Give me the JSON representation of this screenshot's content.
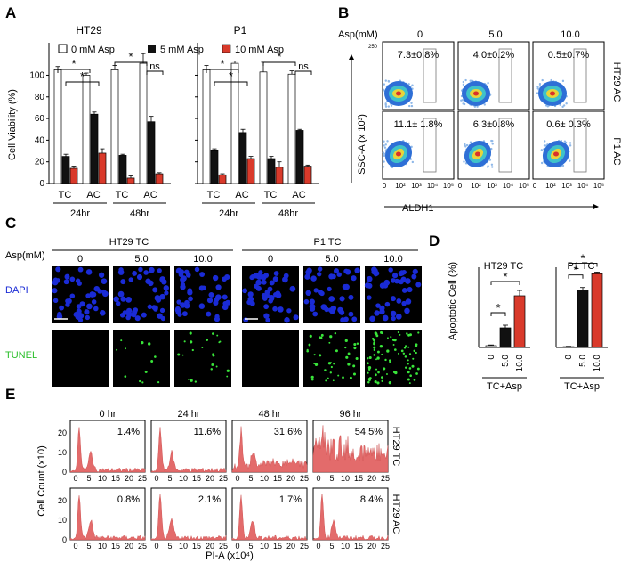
{
  "panels": {
    "A": "A",
    "B": "B",
    "C": "C",
    "D": "D",
    "E": "E"
  },
  "colors": {
    "white_bar": "#ffffff",
    "black_bar": "#111111",
    "red_bar": "#d93a2b",
    "dapi": "#1a2bd6",
    "tunel": "#39e53a",
    "hist": "#e36b6b"
  },
  "panel_a": {
    "ylabel": "Cell Viability (%)",
    "yticks": [
      "0",
      "20",
      "40",
      "60",
      "80",
      "100"
    ],
    "legend": [
      "0 mM Asp",
      "5 mM Asp",
      "10 mM Asp"
    ],
    "sig": "*",
    "ns": "ns",
    "group_labels": [
      "TC",
      "AC",
      "TC",
      "AC",
      "TC",
      "AC",
      "TC",
      "AC"
    ],
    "time_labels": [
      "24hr",
      "48hr",
      "24hr",
      "48hr"
    ],
    "charts": [
      {
        "title": "HT29",
        "groups": [
          [
            105,
            25,
            14
          ],
          [
            100,
            64,
            28
          ],
          [
            105,
            26,
            5
          ],
          [
            111,
            57,
            9
          ]
        ],
        "errors": [
          [
            3,
            2,
            2
          ],
          [
            2,
            2,
            4
          ],
          [
            4,
            1,
            2
          ],
          [
            9,
            5,
            1
          ]
        ]
      },
      {
        "title": "P1",
        "groups": [
          [
            105,
            31,
            8
          ],
          [
            111,
            47,
            23
          ],
          [
            103,
            23,
            15
          ],
          [
            101,
            49,
            16
          ]
        ],
        "errors": [
          [
            4,
            1,
            1
          ],
          [
            2,
            3,
            2
          ],
          [
            9,
            2,
            5
          ],
          [
            3,
            1,
            1
          ]
        ]
      }
    ]
  },
  "panel_b": {
    "asp_label": "Asp(mM)",
    "concentrations": [
      "0",
      "5.0",
      "10.0"
    ],
    "ylabel": "SSC-A (x 10³)",
    "xlabel": "ALDH1",
    "yticks": [
      "0",
      "50",
      "100",
      "150",
      "200",
      "250"
    ],
    "xticks": [
      "0",
      "10²",
      "10³",
      "10⁴",
      "10⁵"
    ],
    "rows": [
      {
        "label": "HT29 AC",
        "values": [
          "7.3±0.8%",
          "4.0±0.2%",
          "0.5±0.7%"
        ]
      },
      {
        "label": "P1 AC",
        "values": [
          "11.1± 1.8%",
          "6.3±0.8%",
          "0.6± 0.3%"
        ]
      }
    ]
  },
  "panel_c": {
    "asp_label": "Asp(mM)",
    "group_titles": [
      "HT29 TC",
      "P1 TC"
    ],
    "concentrations": [
      "0",
      "5.0",
      "10.0",
      "0",
      "5.0",
      "10.0"
    ],
    "row_labels": [
      "DAPI",
      "TUNEL"
    ]
  },
  "panel_d": {
    "ylabel": "Apoptotic Cell (%)",
    "charts": [
      {
        "title": "HT29 TC",
        "categories": [
          "0",
          "5.0",
          "10.0"
        ],
        "values": [
          1,
          11,
          29
        ],
        "errors": [
          0.4,
          1.5,
          3
        ],
        "ymax": 50,
        "xlabel": "TC+Asp"
      },
      {
        "title": "P1 TC",
        "categories": [
          "0",
          "5.0",
          "10.0"
        ],
        "values": [
          1,
          71,
          91
        ],
        "errors": [
          0.4,
          3,
          2
        ],
        "ymax": 110,
        "xlabel": "TC+Asp"
      }
    ]
  },
  "panel_e": {
    "ylabel": "Cell Count (x10)",
    "xlabel": "PI-A (x10⁴)",
    "times": [
      "0 hr",
      "24 hr",
      "48 hr",
      "96 hr"
    ],
    "yticks": [
      "0",
      "10",
      "20"
    ],
    "xticks": [
      "0",
      "5",
      "10",
      "15",
      "20",
      "25"
    ],
    "rows": [
      {
        "label": "HT29 TC",
        "values": [
          "1.4%",
          "11.6%",
          "31.6%",
          "54.5%"
        ]
      },
      {
        "label": "HT29 AC",
        "values": [
          "0.8%",
          "2.1%",
          "1.7%",
          "8.4%"
        ]
      }
    ]
  }
}
